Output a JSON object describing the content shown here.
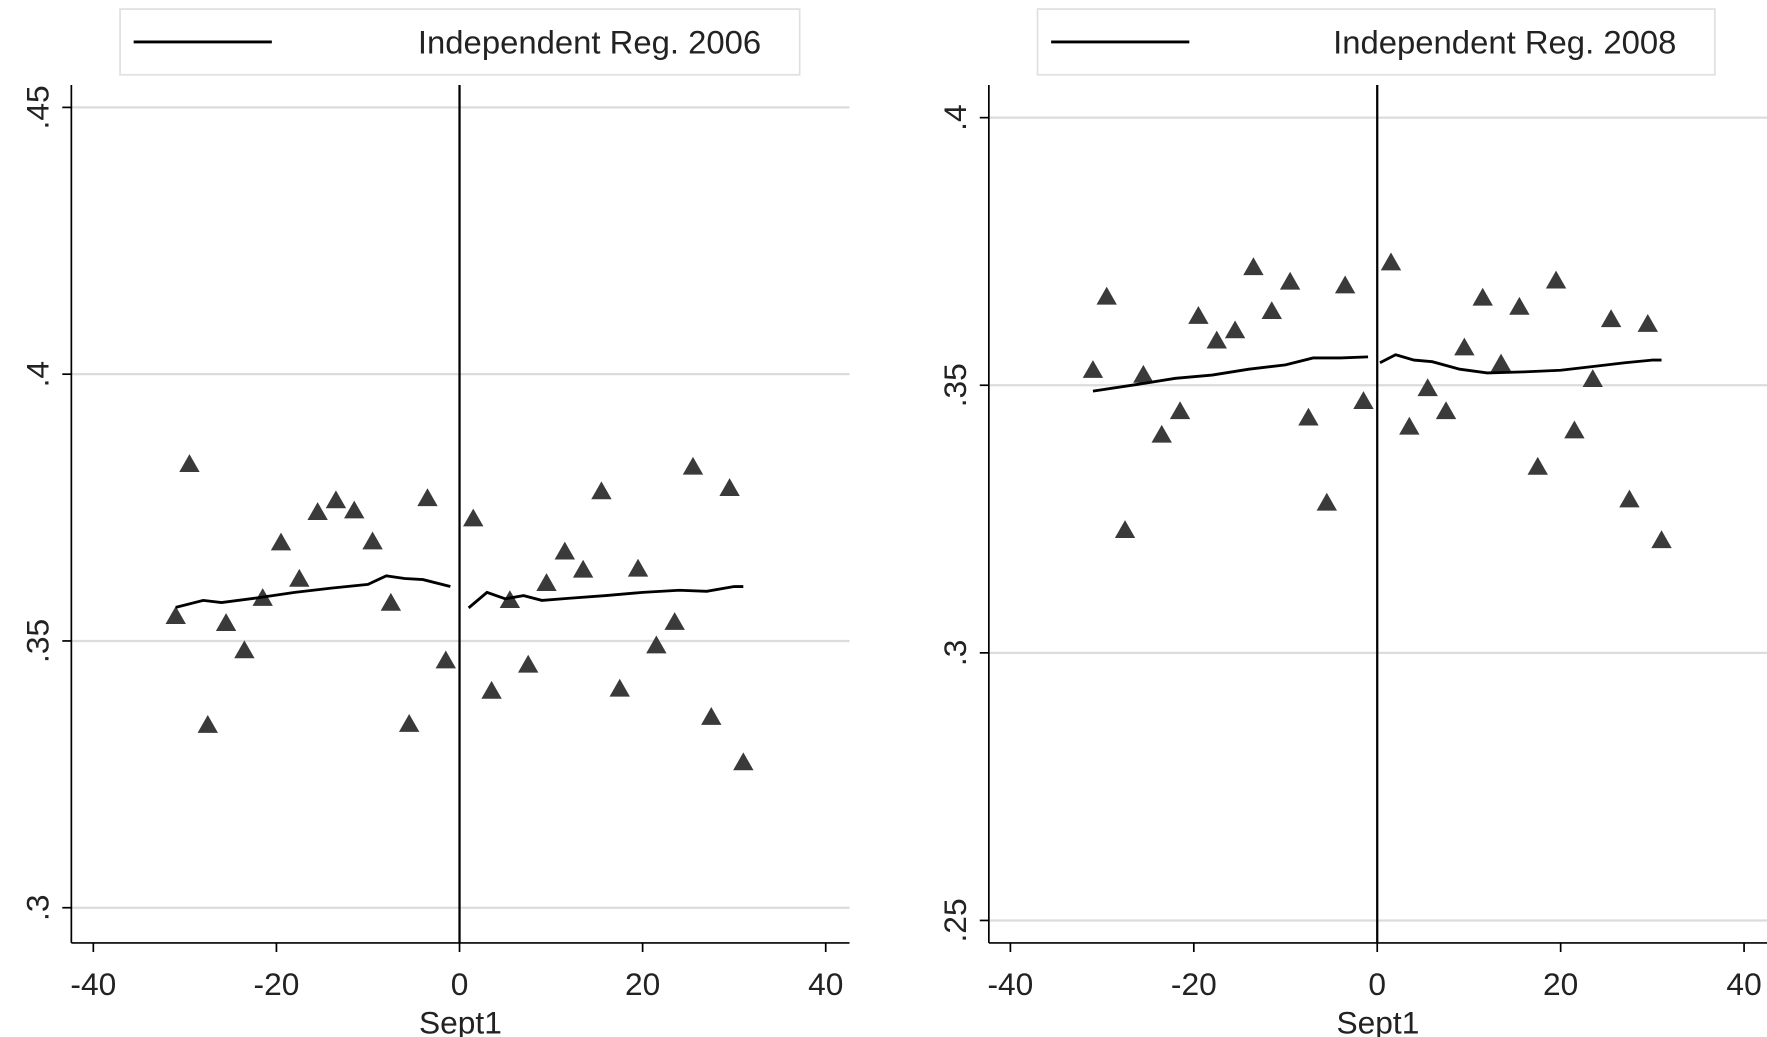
{
  "chart_data": [
    {
      "type": "scatter",
      "xlabel": "Sept1",
      "xlim": [
        -42.4,
        42.6
      ],
      "ylim": [
        0.2934,
        0.4542
      ],
      "xticks": [
        -40,
        -20,
        0,
        20,
        40
      ],
      "yticks": [
        {
          "value": 0.3,
          "label": ".3"
        },
        {
          "value": 0.35,
          "label": ".35"
        },
        {
          "value": 0.4,
          "label": ".4"
        },
        {
          "value": 0.45,
          "label": ".45"
        }
      ],
      "grid": true,
      "xline": 0,
      "legend": "top",
      "points": {
        "color": "#3a3a3a",
        "marker": "triangle",
        "x": [
          -31,
          -29.5,
          -27.5,
          -25.5,
          -23.5,
          -21.5,
          -19.5,
          -17.5,
          -15.5,
          -13.5,
          -11.5,
          -9.5,
          -7.5,
          -5.5,
          -3.5,
          -1.5,
          1.5,
          3.5,
          5.5,
          7.5,
          9.5,
          11.5,
          13.5,
          15.5,
          17.5,
          19.5,
          21.5,
          23.5,
          25.5,
          27.5,
          29.5,
          31
        ],
        "values": [
          0.3546,
          0.3831,
          0.3342,
          0.3533,
          0.3482,
          0.358,
          0.3684,
          0.3616,
          0.3741,
          0.3763,
          0.3744,
          0.3686,
          0.3571,
          0.3344,
          0.3767,
          0.3463,
          0.3729,
          0.3406,
          0.3576,
          0.3455,
          0.3608,
          0.3667,
          0.3633,
          0.378,
          0.341,
          0.3635,
          0.3491,
          0.3535,
          0.3826,
          0.3357,
          0.3786,
          0.3272
        ]
      },
      "series": [
        {
          "name": "Independent Reg. 2006",
          "color": "#000000",
          "x": [
            -31,
            -28,
            -26,
            -22,
            -18,
            -14,
            -10,
            -8,
            -6,
            -4,
            -1,
            0,
            1,
            3,
            5,
            7,
            9,
            12,
            16,
            20,
            24,
            27,
            30,
            31
          ],
          "values": [
            0.3563,
            0.3576,
            0.3572,
            0.3581,
            0.3591,
            0.3599,
            0.3606,
            0.3622,
            0.3617,
            0.3615,
            0.3602,
            null,
            0.3562,
            0.3591,
            0.3579,
            0.3585,
            0.3576,
            0.358,
            0.3585,
            0.3591,
            0.3595,
            0.3593,
            0.3602,
            0.3602
          ]
        }
      ]
    },
    {
      "type": "scatter",
      "xlabel": "Sept1",
      "xlim": [
        -42.35,
        42.5
      ],
      "ylim": [
        0.2458,
        0.4061
      ],
      "xticks": [
        -40,
        -20,
        0,
        20,
        40
      ],
      "yticks": [
        {
          "value": 0.25,
          "label": ".25"
        },
        {
          "value": 0.3,
          "label": ".3"
        },
        {
          "value": 0.35,
          "label": ".35"
        },
        {
          "value": 0.4,
          "label": ".4"
        }
      ],
      "grid": true,
      "xline": 0,
      "legend": "top",
      "points": {
        "color": "#3a3a3a",
        "marker": "triangle",
        "x": [
          -31,
          -29.5,
          -27.5,
          -25.5,
          -23.5,
          -21.5,
          -19.5,
          -17.5,
          -15.5,
          -13.5,
          -11.5,
          -9.5,
          -7.5,
          -5.5,
          -3.5,
          -1.5,
          1.5,
          3.5,
          5.5,
          7.5,
          9.5,
          11.5,
          13.5,
          15.5,
          17.5,
          19.5,
          21.5,
          23.5,
          25.5,
          27.5,
          29.5,
          31
        ],
        "values": [
          0.3528,
          0.3665,
          0.3229,
          0.3519,
          0.3407,
          0.3451,
          0.3629,
          0.3583,
          0.3602,
          0.372,
          0.3638,
          0.3693,
          0.3439,
          0.328,
          0.3686,
          0.347,
          0.3729,
          0.3422,
          0.3494,
          0.3451,
          0.357,
          0.3663,
          0.354,
          0.3646,
          0.3347,
          0.3695,
          0.3415,
          0.3511,
          0.3623,
          0.3286,
          0.3614,
          0.321
        ]
      },
      "series": [
        {
          "name": "Independent Reg. 2008",
          "color": "#000000",
          "x": [
            -31,
            -26,
            -22,
            -18,
            -14,
            -10,
            -7,
            -4,
            -1,
            0,
            0.3,
            2,
            4,
            6,
            9,
            12,
            16,
            20,
            24,
            27,
            30,
            31
          ],
          "values": [
            0.3489,
            0.3502,
            0.3513,
            0.3519,
            0.353,
            0.3538,
            0.3551,
            0.3551,
            0.3553,
            null,
            0.3542,
            0.3557,
            0.3547,
            0.3544,
            0.353,
            0.3523,
            0.3525,
            0.3528,
            0.3536,
            0.3542,
            0.3547,
            0.3547
          ]
        }
      ]
    }
  ]
}
